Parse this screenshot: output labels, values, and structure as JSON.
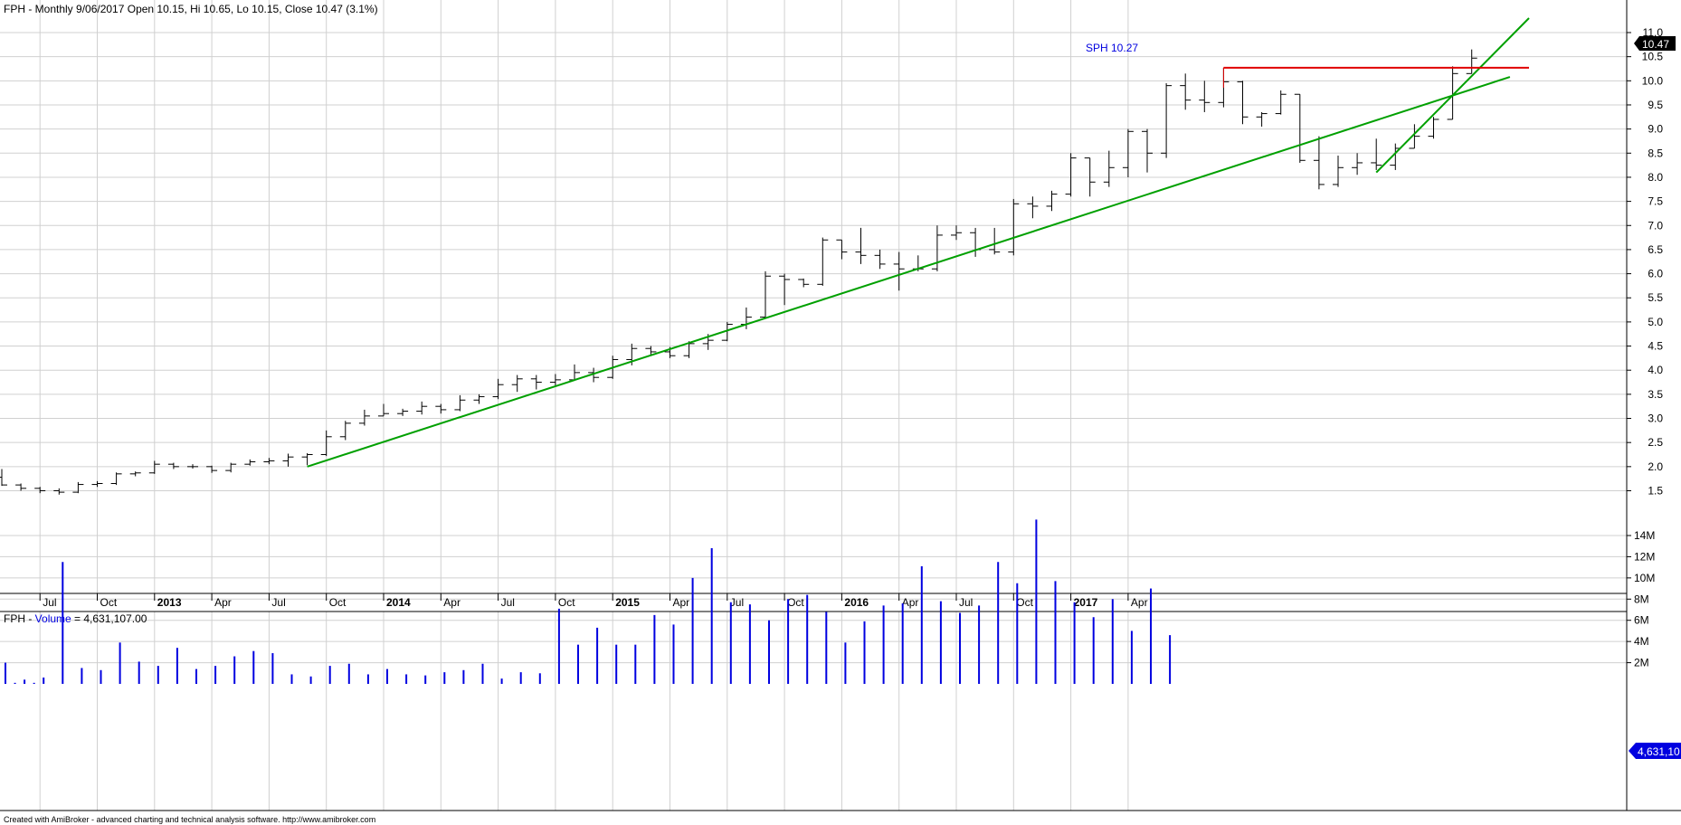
{
  "price_pane": {
    "header": "FPH - Monthly 9/06/2017 Open 10.15, Hi 10.65, Lo 10.15, Close 10.47 (3.1%)",
    "last_price_label": "10.47",
    "annotation": "SPH 10.27"
  },
  "volume_pane": {
    "header_symbol": "FPH - ",
    "header_series": "Volume",
    "header_value": " = 4,631,107.00",
    "last_volume_label": "4,631,10"
  },
  "footer": "Created with AmiBroker - advanced charting and technical analysis software. http://www.amibroker.com",
  "colors": {
    "bars": "#000000",
    "trendline": "#00a000",
    "resistance": "#e00000",
    "volume": "#0000e0",
    "annotation": "#0000e0",
    "grid": "#d0d0d0"
  },
  "chart_data": [
    {
      "type": "ohlc",
      "period": "monthly",
      "x_tick_labels": [
        "Jul",
        "Oct",
        "2013",
        "Apr",
        "Jul",
        "Oct",
        "2014",
        "Apr",
        "Jul",
        "Oct",
        "2015",
        "Apr",
        "Jul",
        "Oct",
        "2016",
        "Apr",
        "Jul",
        "Oct",
        "2017",
        "Apr"
      ],
      "y_tick_labels": [
        "1.5",
        "2.0",
        "2.5",
        "3.0",
        "3.5",
        "4.0",
        "4.5",
        "5.0",
        "5.5",
        "6.0",
        "6.5",
        "7.0",
        "7.5",
        "8.0",
        "8.5",
        "9.0",
        "9.5",
        "10.0",
        "10.5",
        "11.0"
      ],
      "ylim": [
        1.25,
        11.2
      ],
      "y_axis_side": "right",
      "bars": [
        {
          "date": "2012-05",
          "open": 1.78,
          "high": 1.95,
          "low": 1.6,
          "close": 1.62
        },
        {
          "date": "2012-06",
          "open": 1.62,
          "high": 1.65,
          "low": 1.5,
          "close": 1.55
        },
        {
          "date": "2012-07",
          "open": 1.55,
          "high": 1.58,
          "low": 1.45,
          "close": 1.5
        },
        {
          "date": "2012-08",
          "open": 1.5,
          "high": 1.55,
          "low": 1.42,
          "close": 1.47
        },
        {
          "date": "2012-09",
          "open": 1.47,
          "high": 1.68,
          "low": 1.45,
          "close": 1.63
        },
        {
          "date": "2012-10",
          "open": 1.63,
          "high": 1.7,
          "low": 1.58,
          "close": 1.65
        },
        {
          "date": "2012-11",
          "open": 1.65,
          "high": 1.88,
          "low": 1.62,
          "close": 1.85
        },
        {
          "date": "2012-12",
          "open": 1.85,
          "high": 1.9,
          "low": 1.8,
          "close": 1.87
        },
        {
          "date": "2013-01",
          "open": 1.87,
          "high": 2.12,
          "low": 1.85,
          "close": 2.05
        },
        {
          "date": "2013-02",
          "open": 2.05,
          "high": 2.08,
          "low": 1.95,
          "close": 2.0
        },
        {
          "date": "2013-03",
          "open": 2.0,
          "high": 2.05,
          "low": 1.96,
          "close": 2.0
        },
        {
          "date": "2013-04",
          "open": 2.0,
          "high": 2.02,
          "low": 1.87,
          "close": 1.92
        },
        {
          "date": "2013-05",
          "open": 1.92,
          "high": 2.08,
          "low": 1.88,
          "close": 2.05
        },
        {
          "date": "2013-06",
          "open": 2.05,
          "high": 2.15,
          "low": 2.02,
          "close": 2.1
        },
        {
          "date": "2013-07",
          "open": 2.1,
          "high": 2.18,
          "low": 2.05,
          "close": 2.12
        },
        {
          "date": "2013-08",
          "open": 2.12,
          "high": 2.27,
          "low": 2.0,
          "close": 2.2
        },
        {
          "date": "2013-09",
          "open": 2.2,
          "high": 2.28,
          "low": 2.03,
          "close": 2.25
        },
        {
          "date": "2013-10",
          "open": 2.25,
          "high": 2.75,
          "low": 2.22,
          "close": 2.62
        },
        {
          "date": "2013-11",
          "open": 2.62,
          "high": 2.95,
          "low": 2.55,
          "close": 2.9
        },
        {
          "date": "2013-12",
          "open": 2.9,
          "high": 3.18,
          "low": 2.85,
          "close": 3.05
        },
        {
          "date": "2014-01",
          "open": 3.05,
          "high": 3.3,
          "low": 3.05,
          "close": 3.1
        },
        {
          "date": "2014-02",
          "open": 3.1,
          "high": 3.2,
          "low": 3.05,
          "close": 3.15
        },
        {
          "date": "2014-03",
          "open": 3.15,
          "high": 3.35,
          "low": 3.08,
          "close": 3.25
        },
        {
          "date": "2014-04",
          "open": 3.25,
          "high": 3.3,
          "low": 3.1,
          "close": 3.18
        },
        {
          "date": "2014-05",
          "open": 3.18,
          "high": 3.48,
          "low": 3.15,
          "close": 3.38
        },
        {
          "date": "2014-06",
          "open": 3.38,
          "high": 3.5,
          "low": 3.3,
          "close": 3.45
        },
        {
          "date": "2014-07",
          "open": 3.45,
          "high": 3.82,
          "low": 3.4,
          "close": 3.7
        },
        {
          "date": "2014-08",
          "open": 3.7,
          "high": 3.9,
          "low": 3.55,
          "close": 3.82
        },
        {
          "date": "2014-09",
          "open": 3.82,
          "high": 3.9,
          "low": 3.6,
          "close": 3.75
        },
        {
          "date": "2014-10",
          "open": 3.75,
          "high": 3.92,
          "low": 3.68,
          "close": 3.8
        },
        {
          "date": "2014-11",
          "open": 3.8,
          "high": 4.12,
          "low": 3.78,
          "close": 3.95
        },
        {
          "date": "2014-12",
          "open": 3.95,
          "high": 4.05,
          "low": 3.75,
          "close": 3.85
        },
        {
          "date": "2015-01",
          "open": 3.85,
          "high": 4.3,
          "low": 3.82,
          "close": 4.22
        },
        {
          "date": "2015-02",
          "open": 4.22,
          "high": 4.55,
          "low": 4.1,
          "close": 4.45
        },
        {
          "date": "2015-03",
          "open": 4.45,
          "high": 4.5,
          "low": 4.3,
          "close": 4.38
        },
        {
          "date": "2015-04",
          "open": 4.38,
          "high": 4.48,
          "low": 4.25,
          "close": 4.3
        },
        {
          "date": "2015-05",
          "open": 4.3,
          "high": 4.6,
          "low": 4.25,
          "close": 4.55
        },
        {
          "date": "2015-06",
          "open": 4.55,
          "high": 4.75,
          "low": 4.42,
          "close": 4.62
        },
        {
          "date": "2015-07",
          "open": 4.62,
          "high": 5.0,
          "low": 4.6,
          "close": 4.95
        },
        {
          "date": "2015-08",
          "open": 4.95,
          "high": 5.3,
          "low": 4.85,
          "close": 5.1
        },
        {
          "date": "2015-09",
          "open": 5.1,
          "high": 6.05,
          "low": 5.1,
          "close": 5.95
        },
        {
          "date": "2015-10",
          "open": 5.95,
          "high": 6.0,
          "low": 5.35,
          "close": 5.88
        },
        {
          "date": "2015-11",
          "open": 5.88,
          "high": 5.9,
          "low": 5.72,
          "close": 5.78
        },
        {
          "date": "2015-12",
          "open": 5.78,
          "high": 6.75,
          "low": 5.75,
          "close": 6.7
        },
        {
          "date": "2016-01",
          "open": 6.7,
          "high": 6.7,
          "low": 6.3,
          "close": 6.45
        },
        {
          "date": "2016-02",
          "open": 6.45,
          "high": 6.95,
          "low": 6.2,
          "close": 6.38
        },
        {
          "date": "2016-03",
          "open": 6.38,
          "high": 6.5,
          "low": 6.1,
          "close": 6.2
        },
        {
          "date": "2016-04",
          "open": 6.2,
          "high": 6.45,
          "low": 5.65,
          "close": 6.1
        },
        {
          "date": "2016-05",
          "open": 6.1,
          "high": 6.38,
          "low": 6.05,
          "close": 6.1
        },
        {
          "date": "2016-06",
          "open": 6.1,
          "high": 7.0,
          "low": 6.05,
          "close": 6.8
        },
        {
          "date": "2016-07",
          "open": 6.8,
          "high": 7.0,
          "low": 6.7,
          "close": 6.85
        },
        {
          "date": "2016-08",
          "open": 6.85,
          "high": 6.95,
          "low": 6.35,
          "close": 6.5
        },
        {
          "date": "2016-09",
          "open": 6.5,
          "high": 6.95,
          "low": 6.4,
          "close": 6.45
        },
        {
          "date": "2016-10",
          "open": 6.45,
          "high": 7.55,
          "low": 6.38,
          "close": 7.45
        },
        {
          "date": "2016-11",
          "open": 7.45,
          "high": 7.6,
          "low": 7.15,
          "close": 7.4
        },
        {
          "date": "2016-12",
          "open": 7.4,
          "high": 7.72,
          "low": 7.3,
          "close": 7.65
        },
        {
          "date": "2017-01",
          "open": 7.65,
          "high": 8.5,
          "low": 7.6,
          "close": 8.4
        },
        {
          "date": "2017-02",
          "open": 8.4,
          "high": 8.4,
          "low": 7.6,
          "close": 7.9
        },
        {
          "date": "2017-03",
          "open": 7.9,
          "high": 8.55,
          "low": 7.8,
          "close": 8.2
        },
        {
          "date": "2017-04",
          "open": 8.2,
          "high": 9.0,
          "low": 8.0,
          "close": 8.95
        },
        {
          "date": "2017-05",
          "open": 8.95,
          "high": 9.0,
          "low": 8.1,
          "close": 8.5
        },
        {
          "date": "2017-06",
          "open": 8.5,
          "high": 9.95,
          "low": 8.4,
          "close": 9.9
        },
        {
          "date": "2017-07",
          "open": 9.9,
          "high": 10.15,
          "low": 9.4,
          "close": 9.6
        },
        {
          "date": "2017-08",
          "open": 9.6,
          "high": 10.0,
          "low": 9.35,
          "close": 9.55
        },
        {
          "date": "2017-09",
          "open": 9.55,
          "high": 10.27,
          "low": 9.45,
          "close": 9.98
        },
        {
          "date": "2017-10",
          "open": 9.98,
          "high": 10.0,
          "low": 9.1,
          "close": 9.25
        },
        {
          "date": "2017-11",
          "open": 9.25,
          "high": 9.35,
          "low": 9.05,
          "close": 9.32
        },
        {
          "date": "2017-12",
          "open": 9.32,
          "high": 9.8,
          "low": 9.3,
          "close": 9.72
        },
        {
          "date": "2018-01",
          "open": 9.72,
          "high": 9.72,
          "low": 8.3,
          "close": 8.35
        },
        {
          "date": "2018-02",
          "open": 8.35,
          "high": 8.85,
          "low": 7.75,
          "close": 7.85
        },
        {
          "date": "2018-03",
          "open": 7.85,
          "high": 8.45,
          "low": 7.8,
          "close": 8.2
        },
        {
          "date": "2018-04",
          "open": 8.2,
          "high": 8.5,
          "low": 8.05,
          "close": 8.3
        },
        {
          "date": "2018-05",
          "open": 8.3,
          "high": 8.8,
          "low": 8.15,
          "close": 8.25
        },
        {
          "date": "2018-06",
          "open": 8.25,
          "high": 8.7,
          "low": 8.15,
          "close": 8.6
        },
        {
          "date": "2018-07",
          "open": 8.6,
          "high": 9.1,
          "low": 8.6,
          "close": 8.85
        },
        {
          "date": "2018-08",
          "open": 8.85,
          "high": 9.25,
          "low": 8.8,
          "close": 9.2
        },
        {
          "date": "2018-09",
          "open": 9.2,
          "high": 10.3,
          "low": 9.2,
          "close": 10.15
        },
        {
          "date": "2018-10",
          "open": 10.15,
          "high": 10.65,
          "low": 10.15,
          "close": 10.47
        }
      ],
      "lines": [
        {
          "name": "long trendline",
          "color": "#00a000",
          "from": {
            "date": "2013-09",
            "value": 2.0
          },
          "to": {
            "date": "2018-12",
            "value": 10.08
          }
        },
        {
          "name": "steep trendline",
          "color": "#00a000",
          "from": {
            "date": "2018-05",
            "value": 8.1
          },
          "to": {
            "date": "2019-01",
            "value": 11.3
          }
        },
        {
          "name": "SPH resistance",
          "color": "#e00000",
          "from": {
            "date": "2017-09",
            "value": 10.27
          },
          "to": {
            "date": "2019-01",
            "value": 10.27
          }
        }
      ]
    },
    {
      "type": "bar",
      "series_name": "Volume",
      "y_tick_labels": [
        "2M",
        "4M",
        "6M",
        "8M",
        "10M",
        "12M",
        "14M"
      ],
      "ylim": [
        0,
        15.5
      ],
      "unit": "M",
      "values": [
        2.0,
        0.1,
        0.4,
        0.1,
        0.6,
        0.0,
        11.5,
        0.0,
        1.5,
        0.0,
        1.3,
        0.0,
        3.9,
        0.0,
        2.1,
        0.0,
        1.7,
        0.0,
        3.4,
        0.0,
        1.4,
        0.0,
        1.7,
        0.0,
        2.6,
        0.0,
        3.1,
        0.0,
        2.9,
        0.0,
        0.9,
        0.0,
        0.7,
        0.0,
        1.7,
        0.0,
        1.9,
        0.0,
        0.9,
        0.0,
        1.4,
        0.0,
        0.9,
        0.0,
        0.8,
        0.0,
        1.1,
        0.0,
        1.3,
        0.0,
        1.9,
        0.0,
        0.5,
        0.0,
        1.1,
        0.0,
        1.0,
        0.0,
        7.1,
        0.0,
        3.7,
        0.0,
        5.3,
        0.0,
        3.7,
        0.0,
        3.7,
        0.0,
        6.5,
        0.0,
        5.6,
        0.0,
        10.0,
        0.0,
        12.8,
        0.0,
        7.7,
        0.0,
        7.5,
        0.0,
        6.0,
        0.0,
        8.0,
        0.0,
        8.4,
        0.0,
        6.8,
        0.0,
        3.9,
        0.0,
        5.9,
        0.0,
        7.4,
        0.0,
        7.6,
        0.0,
        11.1,
        0.0,
        7.8,
        0.0,
        6.7,
        0.0,
        7.4,
        0.0,
        11.5,
        0.0,
        9.5,
        0.0,
        15.5,
        0.0,
        9.7,
        0.0,
        7.7,
        0.0,
        6.3,
        0.0,
        8.0,
        0.0,
        5.0,
        0.0,
        9.0,
        0.0,
        4.6
      ]
    }
  ]
}
